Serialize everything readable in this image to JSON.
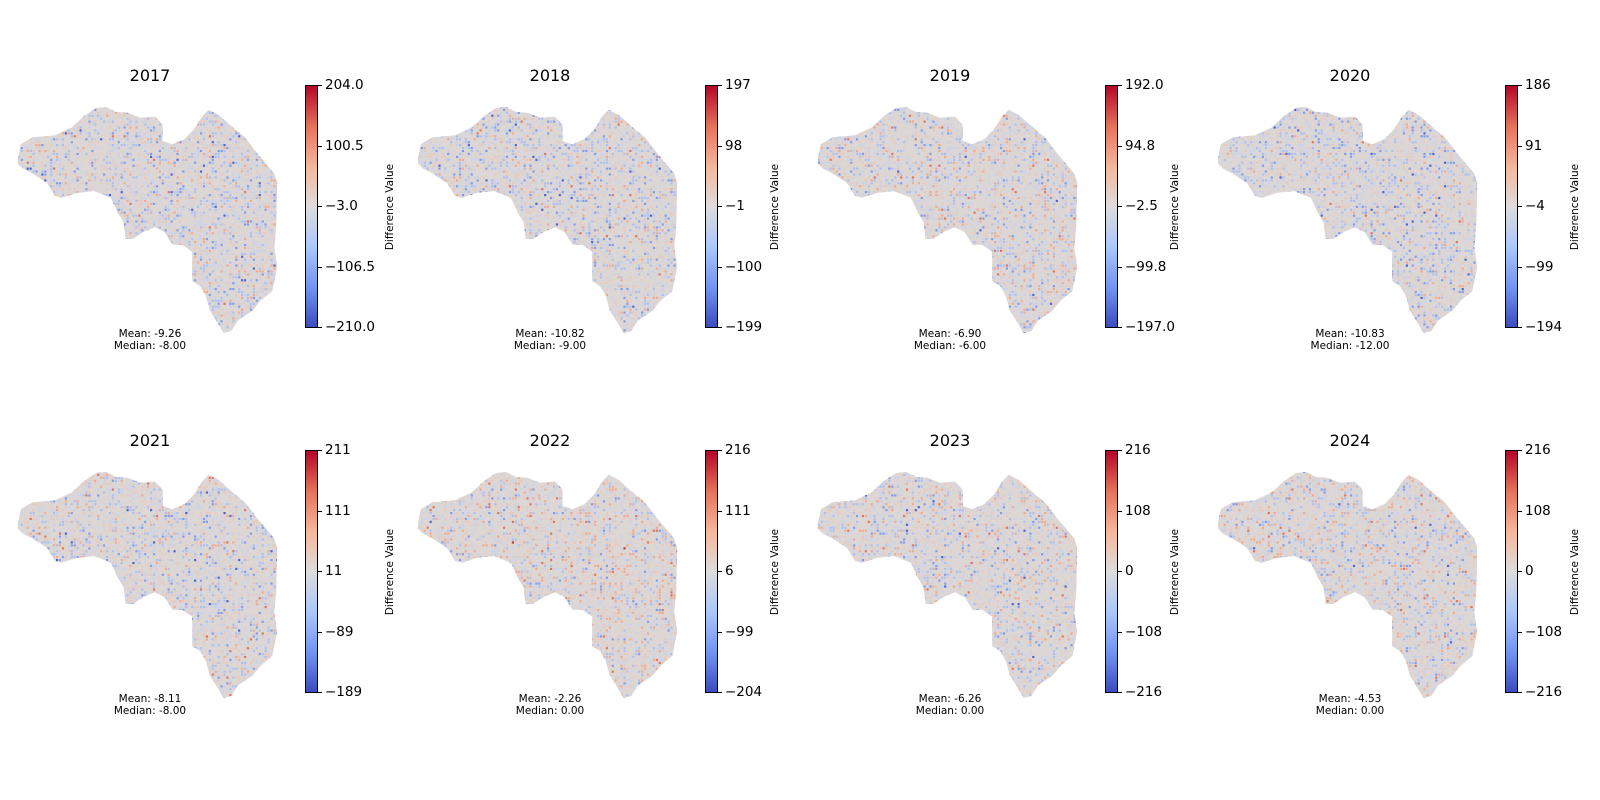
{
  "chart_data": [
    {
      "type": "heatmap",
      "title": "2017",
      "colormap": "coolwarm",
      "colorbar_label": "Difference Value",
      "colorbar_range": [
        -210.0,
        204.0
      ],
      "colorbar_ticks": [
        "204.0",
        "100.5",
        "−3.0",
        "−106.5",
        "−210.0"
      ],
      "stats": {
        "mean": "Mean: -9.26",
        "median": "Median: -8.00"
      }
    },
    {
      "type": "heatmap",
      "title": "2018",
      "colormap": "coolwarm",
      "colorbar_label": "Difference Value",
      "colorbar_range": [
        -199,
        197
      ],
      "colorbar_ticks": [
        "197",
        "98",
        "−1",
        "−100",
        "−199"
      ],
      "stats": {
        "mean": "Mean: -10.82",
        "median": "Median: -9.00"
      }
    },
    {
      "type": "heatmap",
      "title": "2019",
      "colormap": "coolwarm",
      "colorbar_label": "Difference Value",
      "colorbar_range": [
        -197.0,
        192.0
      ],
      "colorbar_ticks": [
        "192.0",
        "94.8",
        "−2.5",
        "−99.8",
        "−197.0"
      ],
      "stats": {
        "mean": "Mean: -6.90",
        "median": "Median: -6.00"
      }
    },
    {
      "type": "heatmap",
      "title": "2020",
      "colormap": "coolwarm",
      "colorbar_label": "Difference Value",
      "colorbar_range": [
        -194,
        186
      ],
      "colorbar_ticks": [
        "186",
        "91",
        "−4",
        "−99",
        "−194"
      ],
      "stats": {
        "mean": "Mean: -10.83",
        "median": "Median: -12.00"
      }
    },
    {
      "type": "heatmap",
      "title": "2021",
      "colormap": "coolwarm",
      "colorbar_label": "Difference Value",
      "colorbar_range": [
        -189,
        211
      ],
      "colorbar_ticks": [
        "211",
        "111",
        "11",
        "−89",
        "−189"
      ],
      "stats": {
        "mean": "Mean: -8.11",
        "median": "Median: -8.00"
      }
    },
    {
      "type": "heatmap",
      "title": "2022",
      "colormap": "coolwarm",
      "colorbar_label": "Difference Value",
      "colorbar_range": [
        -204,
        216
      ],
      "colorbar_ticks": [
        "216",
        "111",
        "6",
        "−99",
        "−204"
      ],
      "stats": {
        "mean": "Mean: -2.26",
        "median": "Median: 0.00"
      }
    },
    {
      "type": "heatmap",
      "title": "2023",
      "colormap": "coolwarm",
      "colorbar_label": "Difference Value",
      "colorbar_range": [
        -216,
        216
      ],
      "colorbar_ticks": [
        "216",
        "108",
        "0",
        "−108",
        "−216"
      ],
      "stats": {
        "mean": "Mean: -6.26",
        "median": "Median: 0.00"
      }
    },
    {
      "type": "heatmap",
      "title": "2024",
      "colormap": "coolwarm",
      "colorbar_label": "Difference Value",
      "colorbar_range": [
        -216,
        216
      ],
      "colorbar_ticks": [
        "216",
        "108",
        "0",
        "−108",
        "−216"
      ],
      "stats": {
        "mean": "Mean: -4.53",
        "median": "Median: 0.00"
      }
    }
  ],
  "colors": {
    "coolwarm": [
      "#3b4cc0",
      "#6f92f3",
      "#aac7fd",
      "#dddcdc",
      "#f7b89c",
      "#e7745b",
      "#b40426"
    ]
  }
}
